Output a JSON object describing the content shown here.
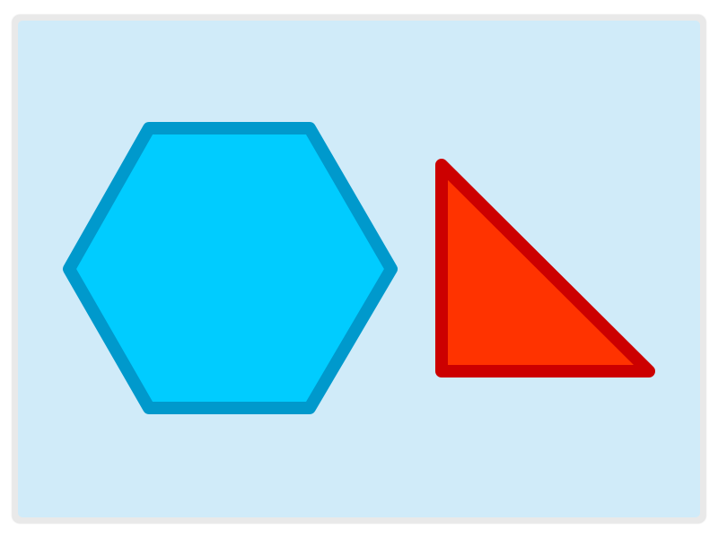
{
  "canvas": {
    "frame_color": "#e9e9e9",
    "background_color": "#d0ebf9"
  },
  "shapes": [
    {
      "name": "hexagon",
      "fill_color": "#00ccff",
      "stroke_color": "#0099cc"
    },
    {
      "name": "right-triangle",
      "fill_color": "#ff3300",
      "stroke_color": "#cc0000"
    }
  ]
}
